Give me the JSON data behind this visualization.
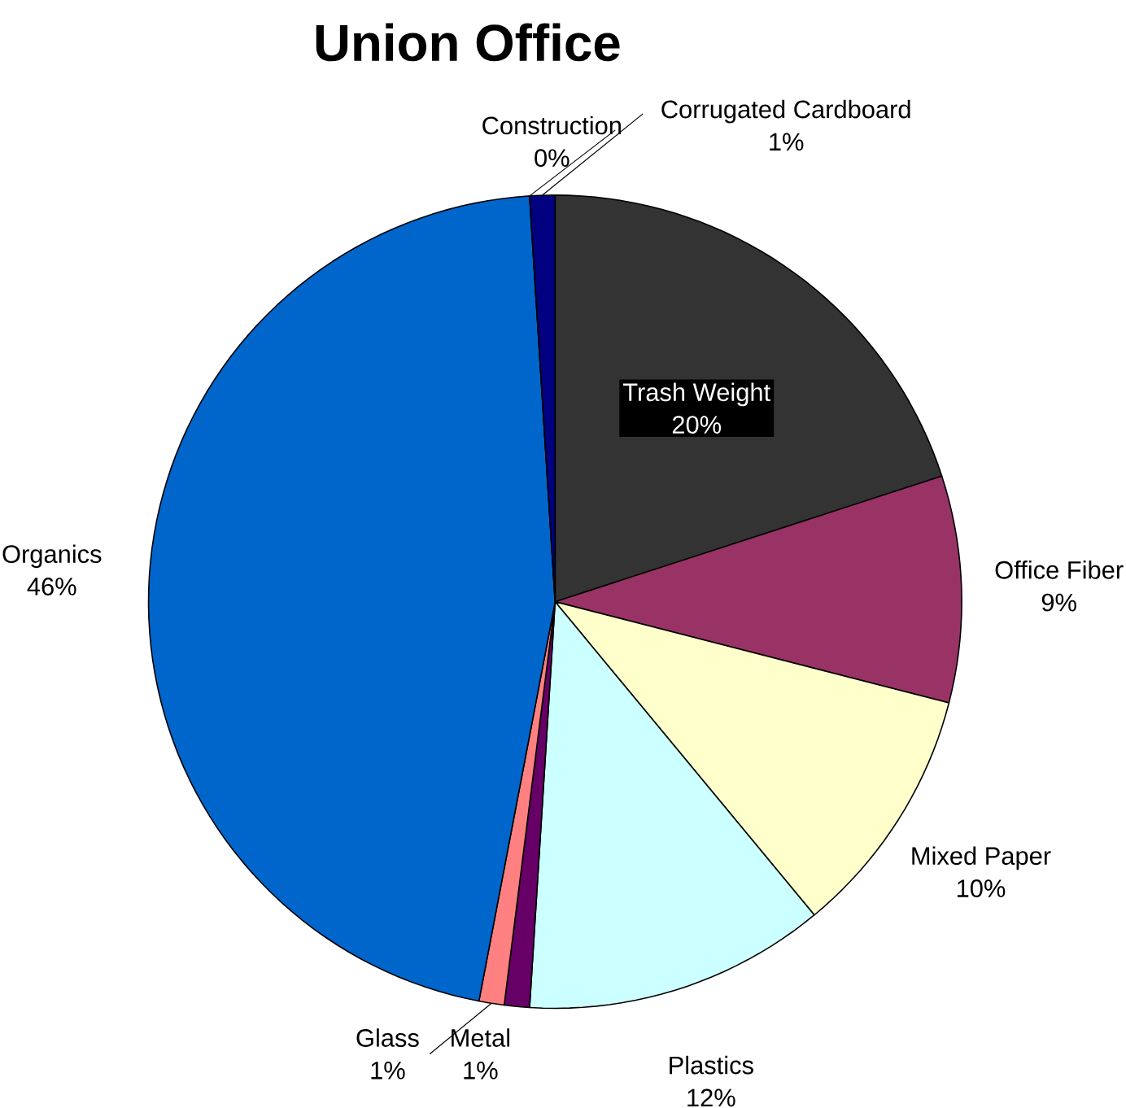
{
  "chart_data": {
    "type": "pie",
    "title": "Union Office",
    "categories": [
      "Trash Weight",
      "Office Fiber",
      "Mixed Paper",
      "Plastics",
      "Metal",
      "Glass",
      "Organics",
      "Construction",
      "Corrugated Cardboard"
    ],
    "values": [
      20,
      9,
      10,
      12,
      1,
      1,
      46,
      0,
      1
    ],
    "value_labels": [
      "20%",
      "9%",
      "10%",
      "12%",
      "1%",
      "1%",
      "46%",
      "0%",
      "1%"
    ],
    "colors": [
      "#333333",
      "#993366",
      "#ffffcc",
      "#ccffff",
      "#660066",
      "#ff8080",
      "#0066cc",
      "#ccccff",
      "#000080"
    ]
  }
}
